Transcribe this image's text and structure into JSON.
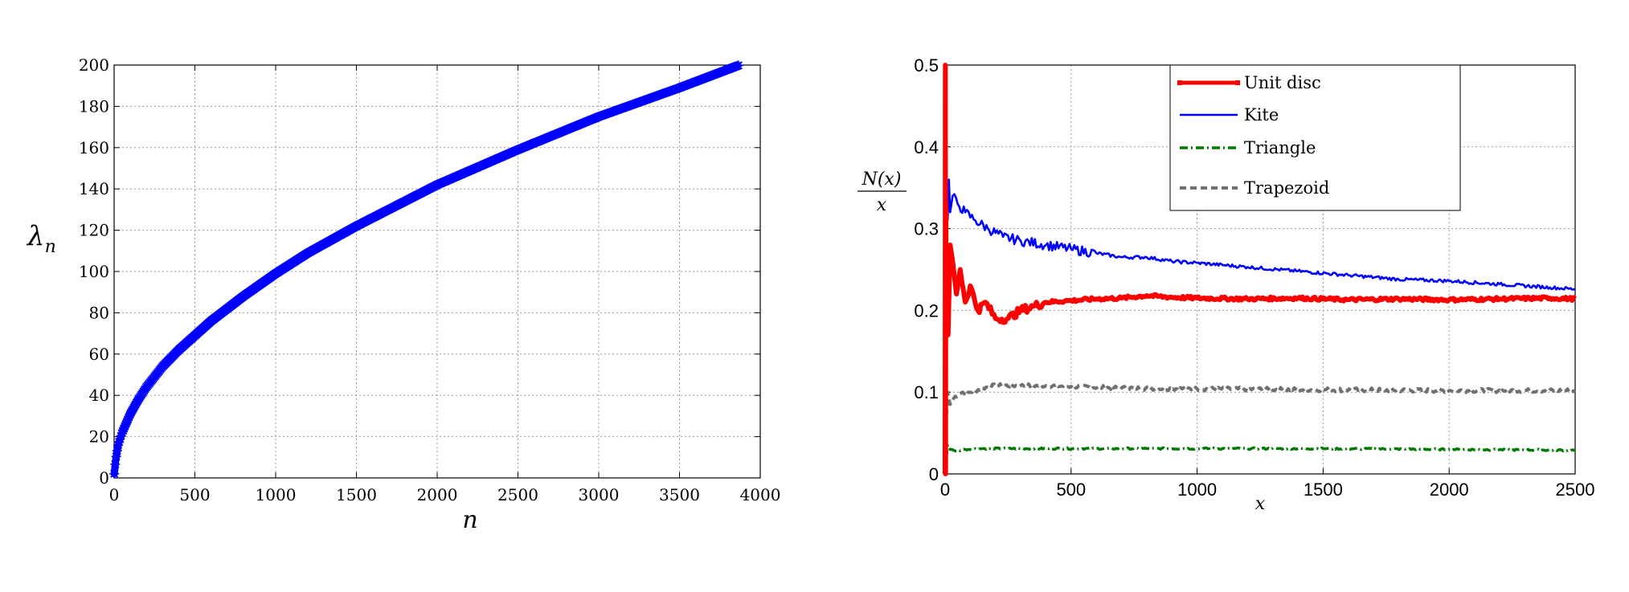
{
  "chart_data": [
    {
      "type": "scatter",
      "xlabel": "n",
      "ylabel": "λ",
      "ylabel_sub": "n",
      "xlim": [
        0,
        4000
      ],
      "ylim": [
        0,
        200
      ],
      "xticks": [
        0,
        500,
        1000,
        1500,
        2000,
        2500,
        3000,
        3500,
        4000
      ],
      "yticks": [
        0,
        20,
        40,
        60,
        80,
        100,
        120,
        140,
        160,
        180,
        200
      ],
      "grid": true,
      "marker": "*",
      "color": "#0000ff",
      "series": [
        {
          "x": [
            1,
            10,
            25,
            50,
            100,
            150,
            200,
            300,
            400,
            500,
            600,
            800,
            1000,
            1200,
            1500,
            1800,
            2000,
            2500,
            3000,
            3500,
            3870
          ],
          "y": [
            2,
            9,
            16,
            22,
            31,
            38,
            44,
            54,
            62,
            69,
            76,
            88,
            99,
            109,
            122,
            134,
            142,
            159,
            175,
            189,
            200
          ]
        }
      ]
    },
    {
      "type": "line",
      "xlabel": "x",
      "ylabel_num": "N(x)",
      "ylabel_den": "x",
      "xlim": [
        0,
        2500
      ],
      "ylim": [
        0,
        0.5
      ],
      "xticks": [
        0,
        500,
        1000,
        1500,
        2000,
        2500
      ],
      "yticks": [
        0,
        0.1,
        0.2,
        0.3,
        0.4,
        0.5
      ],
      "grid": true,
      "legend_position": "top-right",
      "series": [
        {
          "name": "Unit disc",
          "color": "#ff0000",
          "style": "solid-marker",
          "x": [
            0,
            1,
            2,
            3,
            5,
            8,
            12,
            20,
            30,
            45,
            60,
            80,
            100,
            130,
            160,
            200,
            250,
            300,
            350,
            400,
            500,
            600,
            700,
            800,
            900,
            1000,
            1200,
            1400,
            1600,
            1800,
            2000,
            2200,
            2400,
            2500
          ],
          "y": [
            0,
            0.5,
            0.0,
            0.33,
            0.2,
            0.25,
            0.17,
            0.28,
            0.26,
            0.22,
            0.25,
            0.21,
            0.23,
            0.2,
            0.21,
            0.19,
            0.19,
            0.2,
            0.205,
            0.21,
            0.212,
            0.214,
            0.215,
            0.218,
            0.216,
            0.215,
            0.214,
            0.215,
            0.213,
            0.214,
            0.213,
            0.214,
            0.215,
            0.214
          ]
        },
        {
          "name": "Kite",
          "color": "#0000ff",
          "style": "solid",
          "x": [
            0,
            1,
            3,
            6,
            10,
            15,
            20,
            30,
            50,
            80,
            120,
            170,
            230,
            300,
            400,
            500,
            600,
            700,
            800,
            900,
            1000,
            1200,
            1400,
            1600,
            1800,
            2000,
            2200,
            2400,
            2500
          ],
          "y": [
            0.1,
            0.25,
            0.3,
            0.33,
            0.31,
            0.36,
            0.32,
            0.34,
            0.33,
            0.32,
            0.31,
            0.3,
            0.29,
            0.285,
            0.28,
            0.275,
            0.27,
            0.265,
            0.265,
            0.26,
            0.258,
            0.253,
            0.248,
            0.243,
            0.238,
            0.236,
            0.232,
            0.228,
            0.226
          ]
        },
        {
          "name": "Triangle",
          "color": "#007a00",
          "style": "dashdot",
          "x": [
            0,
            5,
            10,
            20,
            40,
            80,
            150,
            250,
            400,
            600,
            800,
            1000,
            1500,
            2000,
            2500
          ],
          "y": [
            0.0,
            0.02,
            0.035,
            0.03,
            0.028,
            0.03,
            0.031,
            0.031,
            0.031,
            0.031,
            0.031,
            0.031,
            0.031,
            0.03,
            0.029
          ]
        },
        {
          "name": "Trapezoid",
          "color": "#707070",
          "style": "dashed",
          "x": [
            0,
            3,
            6,
            10,
            20,
            40,
            70,
            100,
            150,
            200,
            300,
            400,
            500,
            700,
            1000,
            1500,
            2000,
            2500
          ],
          "y": [
            0.05,
            0.09,
            0.075,
            0.1,
            0.085,
            0.095,
            0.1,
            0.1,
            0.105,
            0.108,
            0.108,
            0.108,
            0.107,
            0.105,
            0.104,
            0.103,
            0.102,
            0.102
          ]
        }
      ]
    }
  ]
}
